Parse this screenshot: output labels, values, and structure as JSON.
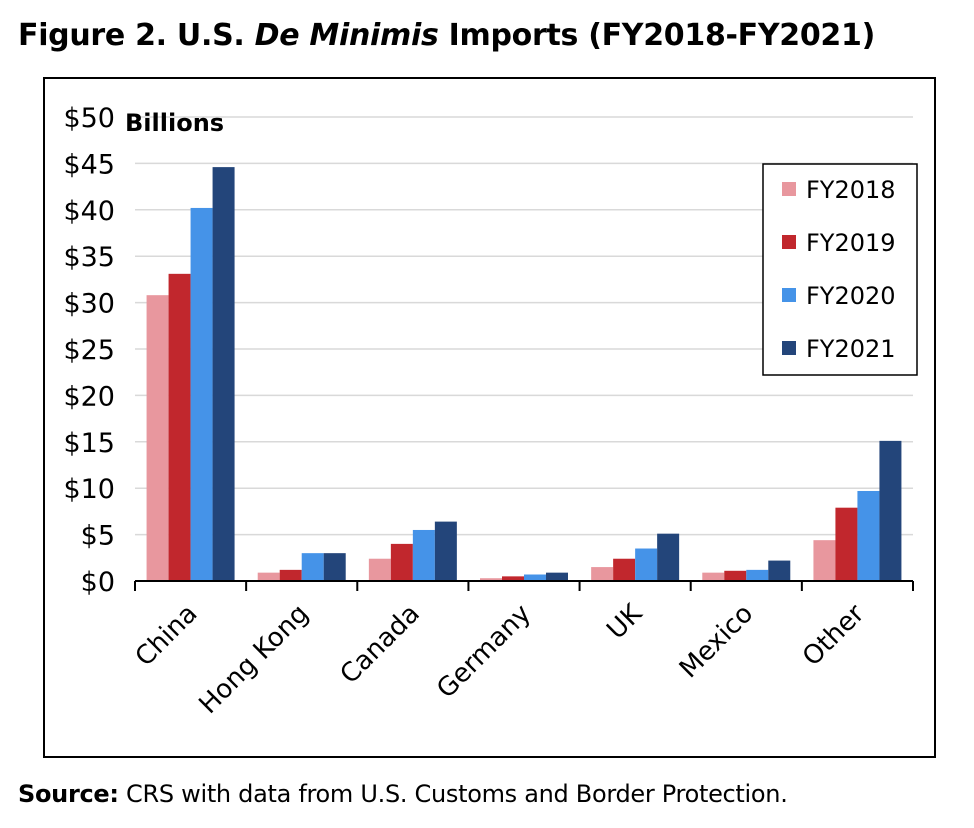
{
  "figure": {
    "title_prefix": "Figure 2. U.S. ",
    "title_italic": "De Minimis",
    "title_suffix": " Imports (FY2018-FY2021)",
    "source_label": "Source:",
    "source_text": " CRS with data from U.S. Customs and Border Protection."
  },
  "chart_data": {
    "type": "bar",
    "title": "Figure 2. U.S. De Minimis Imports (FY2018-FY2021)",
    "unit_label": "Billions",
    "xlabel": "",
    "ylabel": "",
    "ylim": [
      0,
      50
    ],
    "yticks": [
      0,
      5,
      10,
      15,
      20,
      25,
      30,
      35,
      40,
      45,
      50
    ],
    "ytick_labels": [
      "$0",
      "$5",
      "$10",
      "$15",
      "$20",
      "$25",
      "$30",
      "$35",
      "$40",
      "$45",
      "$50"
    ],
    "grid": true,
    "legend_position": "top-right",
    "categories": [
      "China",
      "Hong Kong",
      "Canada",
      "Germany",
      "UK",
      "Mexico",
      "Other"
    ],
    "series": [
      {
        "name": "FY2018",
        "color": "#e8979e",
        "values": [
          30.8,
          0.9,
          2.4,
          0.3,
          1.5,
          0.9,
          4.4
        ]
      },
      {
        "name": "FY2019",
        "color": "#c1272d",
        "values": [
          33.1,
          1.2,
          4.0,
          0.5,
          2.4,
          1.1,
          7.9
        ]
      },
      {
        "name": "FY2020",
        "color": "#4593e8",
        "values": [
          40.2,
          3.0,
          5.5,
          0.7,
          3.5,
          1.2,
          9.7
        ]
      },
      {
        "name": "FY2021",
        "color": "#23457a",
        "values": [
          44.6,
          3.0,
          6.4,
          0.9,
          5.1,
          2.2,
          15.1
        ]
      }
    ]
  }
}
